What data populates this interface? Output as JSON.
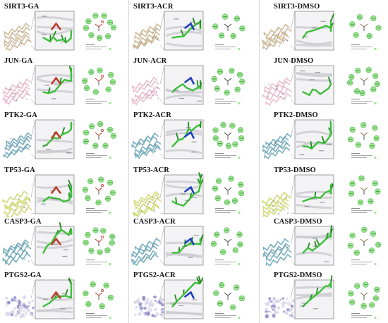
{
  "figure": {
    "columns": [
      {
        "ligand": "GA",
        "panels": [
          {
            "label": "SIRT3-GA",
            "protein": "SIRT3"
          },
          {
            "label": "JUN-GA",
            "protein": "JUN"
          },
          {
            "label": "PTK2-GA",
            "protein": "PTK2"
          },
          {
            "label": "TP53-GA",
            "protein": "TP53"
          },
          {
            "label": "CASP3-GA",
            "protein": "CASP3"
          },
          {
            "label": "PTGS2-GA",
            "protein": "PTGS2"
          }
        ]
      },
      {
        "ligand": "ACR",
        "panels": [
          {
            "label": "SIRT3-ACR",
            "protein": "SIRT3"
          },
          {
            "label": "JUN-ACR",
            "protein": "JUN"
          },
          {
            "label": "PTK2-ACR",
            "protein": "PTK2"
          },
          {
            "label": "TP53-ACR",
            "protein": "TP53"
          },
          {
            "label": "CASP3-ACR",
            "protein": "CASP3"
          },
          {
            "label": "PTGS2-ACR",
            "protein": "PTGS2"
          }
        ]
      },
      {
        "ligand": "DMSO",
        "panels": [
          {
            "label": "SIRT3-DMSO",
            "protein": "SIRT3"
          },
          {
            "label": "JUN-DMSO",
            "protein": "JUN"
          },
          {
            "label": "PTK2-DMSO",
            "protein": "PTK2"
          },
          {
            "label": "TP53-DMSO",
            "protein": "TP53"
          },
          {
            "label": "CASP3-DMSO",
            "protein": "CASP3"
          },
          {
            "label": "PTGS2-DMSO",
            "protein": "PTGS2"
          }
        ]
      }
    ]
  },
  "colors": {
    "ligand_carbon": "#3dbf3a",
    "ligand_dark": "#1f8c1e",
    "oxygen": "#c0392b",
    "nitrogen": "#1f3fbf",
    "residue_fill": "#9be58f",
    "residue_stroke": "#49b34a",
    "helix_blue": "#6aa6b8",
    "helix_pink": "#e7b7c9",
    "helix_yellow": "#c9d86a",
    "surface": "#d9d6ea",
    "tan": "#c9b28f"
  }
}
